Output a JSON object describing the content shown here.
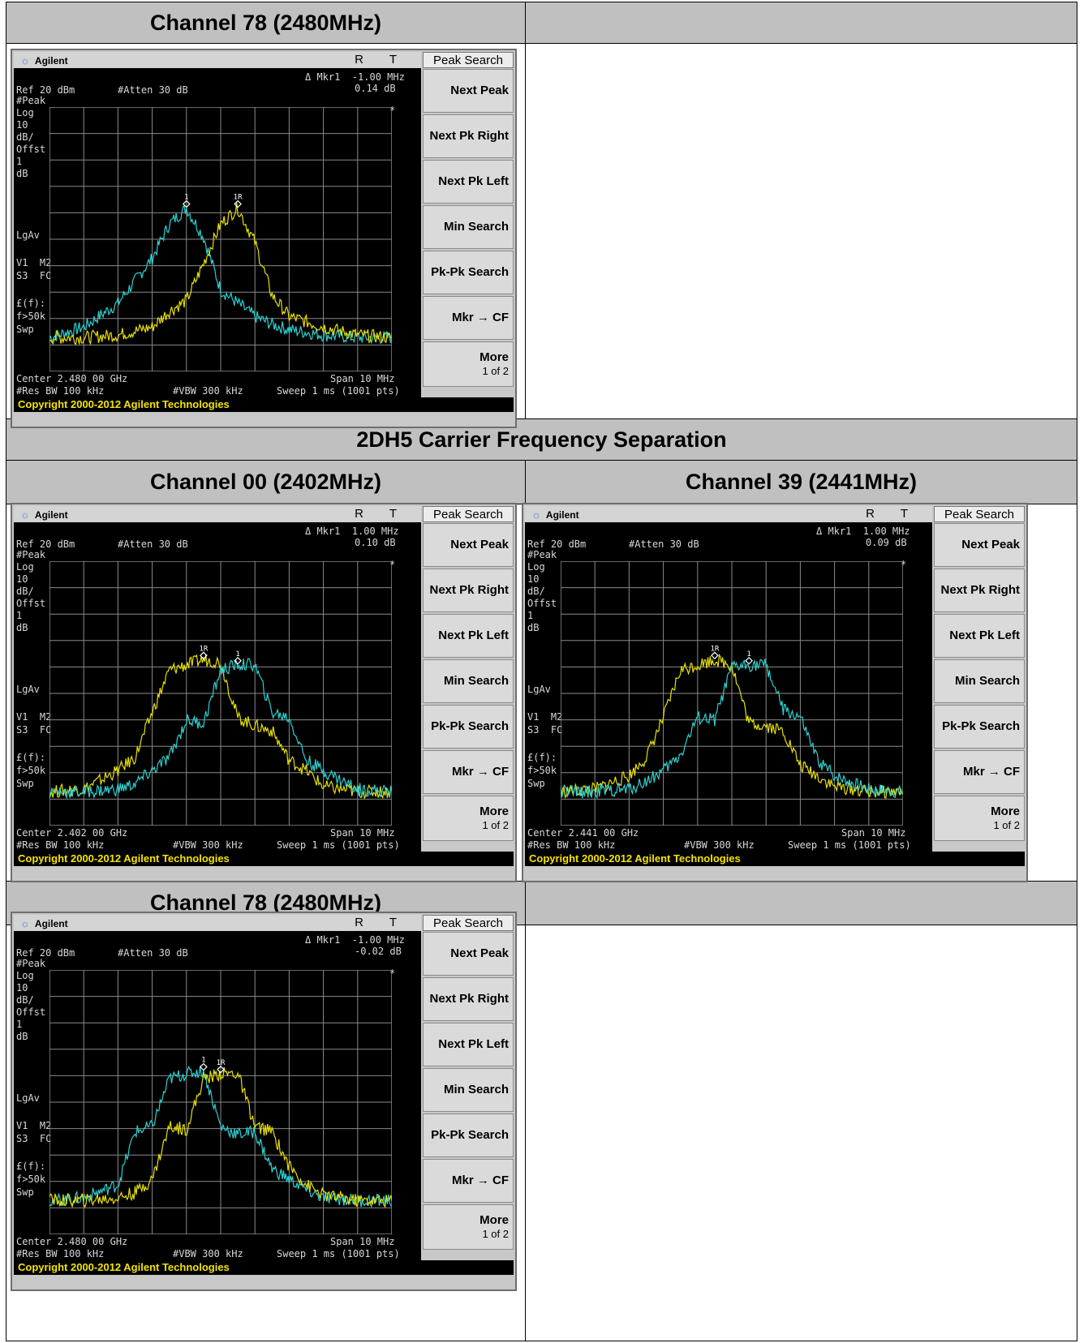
{
  "sections": {
    "top_channel_label": "Channel 78 (2480MHz)",
    "section_title": "2DH5 Carrier Frequency Separation",
    "ch00_label": "Channel 00 (2402MHz)",
    "ch39_label": "Channel 39 (2441MHz)",
    "bottom_channel_label": "Channel 78 (2480MHz)"
  },
  "analyzer_common": {
    "brand": "Agilent",
    "rt": "R T",
    "ref": "Ref 20 dBm",
    "atten": "#Atten 30 dB",
    "left_params": "#Peak\nLog\n10\ndB/\nOffst\n1\ndB",
    "lgav": "LgAv",
    "v1m2": "V1  M2\nS3  FC",
    "ff": "£(f):\nf>50k\nSwp",
    "span": "Span 10 MHz",
    "res_bw": "#Res BW 100 kHz",
    "vbw": "#VBW 300 kHz",
    "sweep": "Sweep 1 ms (1001 pts)",
    "copyright": "Copyright 2000-2012 Agilent Technologies",
    "star": "*",
    "softkey_title": "Peak Search",
    "softkeys": [
      "Next Peak",
      "Next Pk Right",
      "Next Pk Left",
      "Min Search",
      "Pk-Pk Search",
      "Mkr → CF"
    ],
    "more_label": "More",
    "more_page": "1 of 2",
    "trace_colors": {
      "yellow": "#e8e000",
      "cyan": "#2ed0d0"
    }
  },
  "analyzers": [
    {
      "center": "Center 2.480 00 GHz",
      "mkr_line1": "Δ Mkr1  -1.00 MHz",
      "mkr_line2": "0.14 dB",
      "markers": [
        "1",
        "1R"
      ],
      "chart_data": {
        "type": "line",
        "xlabel": "",
        "ylabel": "",
        "x": [
          -5,
          -4,
          -3,
          -2,
          -1.5,
          -1,
          -0.5,
          0,
          0.5,
          1,
          1.5,
          2,
          3,
          4,
          5
        ],
        "series": [
          {
            "color": "cyan",
            "values": [
              -58,
              -54,
              -45,
              -28,
              -15,
              -9,
              -20,
              -40,
              -45,
              -50,
              -53,
              -55,
              -57,
              -58,
              -58
            ]
          },
          {
            "color": "yellow",
            "values": [
              -58,
              -58,
              -57,
              -54,
              -48,
              -44,
              -30,
              -15,
              -9,
              -22,
              -42,
              -50,
              -54,
              -57,
              -58
            ]
          }
        ]
      }
    },
    {
      "center": "Center 2.402 00 GHz",
      "mkr_line1": "Δ Mkr1  1.00 MHz",
      "mkr_line2": "0.10 dB",
      "markers": [
        "1R",
        "1"
      ],
      "chart_data": {
        "type": "line",
        "xlabel": "",
        "ylabel": "",
        "x": [
          -5,
          -4,
          -3,
          -2.5,
          -2,
          -1.5,
          -1,
          -0.5,
          0,
          0.5,
          1,
          1.5,
          2,
          2.5,
          3,
          4,
          5
        ],
        "series": [
          {
            "color": "yellow",
            "values": [
              -58,
              -57,
              -50,
              -45,
              -28,
              -12,
              -10,
              -8,
              -9,
              -30,
              -33,
              -35,
              -46,
              -50,
              -56,
              -58,
              -58
            ]
          },
          {
            "color": "cyan",
            "values": [
              -58,
              -58,
              -57,
              -55,
              -50,
              -45,
              -31,
              -32,
              -12,
              -10,
              -10,
              -28,
              -30,
              -46,
              -50,
              -57,
              -58
            ]
          }
        ]
      }
    },
    {
      "center": "Center 2.441 00 GHz",
      "mkr_line1": "Δ Mkr1  1.00 MHz",
      "mkr_line2": "0.09 dB",
      "markers": [
        "1R",
        "1"
      ],
      "chart_data": {
        "type": "line",
        "xlabel": "",
        "ylabel": "",
        "x": [
          -5,
          -4,
          -3,
          -2.5,
          -2,
          -1.5,
          -1,
          -0.5,
          0,
          0.5,
          1,
          1.5,
          2,
          2.5,
          3,
          4,
          5
        ],
        "series": [
          {
            "color": "yellow",
            "values": [
              -58,
              -57,
              -52,
              -45,
              -30,
              -12,
              -10,
              -8,
              -10,
              -32,
              -33,
              -35,
              -48,
              -52,
              -56,
              -58,
              -58
            ]
          },
          {
            "color": "cyan",
            "values": [
              -58,
              -58,
              -57,
              -54,
              -50,
              -44,
              -30,
              -31,
              -11,
              -10,
              -10,
              -27,
              -30,
              -46,
              -52,
              -57,
              -58
            ]
          }
        ]
      }
    },
    {
      "center": "Center 2.480 00 GHz",
      "mkr_line1": "Δ Mkr1  -1.00 MHz",
      "mkr_line2": "-0.02 dB",
      "markers": [
        "1",
        "1R"
      ],
      "chart_data": {
        "type": "line",
        "xlabel": "",
        "ylabel": "",
        "x": [
          -5,
          -4,
          -3,
          -2.5,
          -2,
          -1.5,
          -1,
          -0.5,
          0,
          0.5,
          1,
          1.5,
          2,
          2.5,
          3,
          4,
          5
        ],
        "series": [
          {
            "color": "cyan",
            "values": [
              -58,
              -57,
              -52,
              -32,
              -30,
              -12,
              -10,
              -9,
              -30,
              -33,
              -32,
              -46,
              -50,
              -54,
              -57,
              -58,
              -58
            ]
          },
          {
            "color": "yellow",
            "values": [
              -58,
              -58,
              -57,
              -55,
              -50,
              -30,
              -31,
              -12,
              -10,
              -10,
              -30,
              -32,
              -45,
              -52,
              -56,
              -58,
              -58
            ]
          }
        ]
      }
    }
  ]
}
